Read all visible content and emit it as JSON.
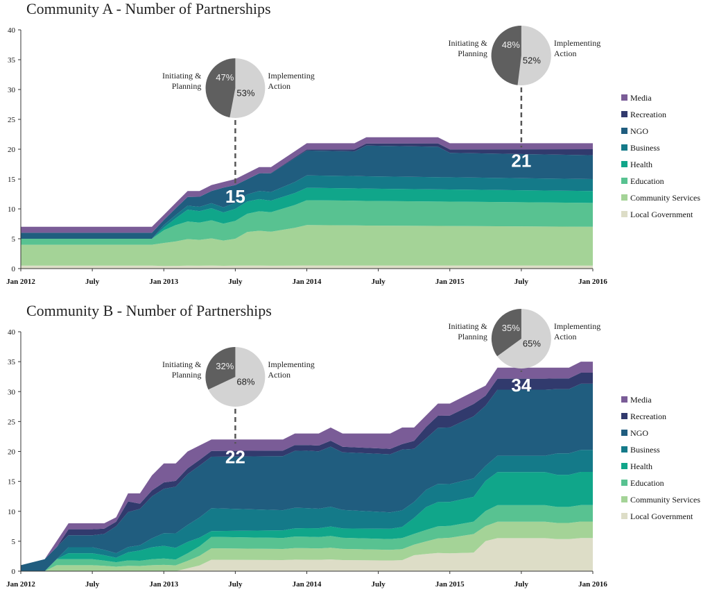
{
  "chart_data": [
    {
      "type": "area",
      "title": "Community A - Number of Partnerships",
      "ylim": [
        0,
        40
      ],
      "yticks": [
        "0",
        "5",
        "10",
        "15",
        "20",
        "25",
        "30",
        "35",
        "40"
      ],
      "xticks": [
        "Jan 2012",
        "July",
        "Jan 2013",
        "July",
        "Jan 2014",
        "July",
        "Jan 2015",
        "July",
        "Jan 2016"
      ],
      "legend": "right",
      "grid": false,
      "x_unit": "month index from Jan 2012",
      "x_range": [
        0,
        48
      ],
      "series": [
        {
          "name": "Local Government",
          "color": "#ddddc7",
          "points": [
            [
              0,
              0.5
            ],
            [
              48,
              0.5
            ]
          ]
        },
        {
          "name": "Community Services",
          "color": "#a4d397",
          "points": [
            [
              0,
              3.5
            ],
            [
              11,
              3.5
            ],
            [
              12,
              4.5
            ],
            [
              18,
              4.5
            ],
            [
              19,
              5.5
            ],
            [
              24,
              6.5
            ],
            [
              48,
              6.5
            ]
          ]
        },
        {
          "name": "Education",
          "color": "#58c291",
          "points": [
            [
              0,
              1
            ],
            [
              11,
              1
            ],
            [
              12,
              2.5
            ],
            [
              13,
              3
            ],
            [
              18,
              3
            ],
            [
              19,
              3
            ],
            [
              24,
              4
            ],
            [
              48,
              4
            ]
          ]
        },
        {
          "name": "Health",
          "color": "#10a68a",
          "points": [
            [
              0,
              0
            ],
            [
              11,
              0
            ],
            [
              12,
              0.5
            ],
            [
              14,
              2
            ],
            [
              18,
              2
            ],
            [
              24,
              2
            ],
            [
              48,
              2
            ]
          ]
        },
        {
          "name": "Business",
          "color": "#147a89",
          "points": [
            [
              0,
              0
            ],
            [
              11,
              0
            ],
            [
              12,
              0.5
            ],
            [
              18,
              1
            ],
            [
              24,
              2
            ],
            [
              48,
              2
            ]
          ]
        },
        {
          "name": "NGO",
          "color": "#205d7f",
          "points": [
            [
              0,
              1
            ],
            [
              11,
              1
            ],
            [
              12,
              1
            ],
            [
              14,
              1.5
            ],
            [
              16,
              2
            ],
            [
              17,
              3.5
            ],
            [
              18,
              3
            ],
            [
              19,
              2.5
            ],
            [
              23,
              4
            ],
            [
              24,
              4
            ],
            [
              28,
              4
            ],
            [
              29,
              5
            ],
            [
              35,
              5
            ],
            [
              36,
              4
            ],
            [
              48,
              4
            ]
          ]
        },
        {
          "name": "Recreation",
          "color": "#313a6d",
          "points": [
            [
              0,
              0
            ],
            [
              11,
              0
            ],
            [
              18,
              0
            ],
            [
              19,
              0
            ],
            [
              48,
              1
            ]
          ]
        },
        {
          "name": "Media",
          "color": "#7a5c97",
          "points": [
            [
              0,
              1
            ],
            [
              11,
              1
            ],
            [
              12,
              1
            ],
            [
              14,
              1
            ],
            [
              17,
              1
            ],
            [
              18,
              1
            ],
            [
              24,
              1
            ],
            [
              48,
              1
            ]
          ]
        }
      ],
      "totals": [
        [
          0,
          7
        ],
        [
          11,
          7
        ],
        [
          12,
          9
        ],
        [
          13,
          11
        ],
        [
          14,
          13
        ],
        [
          15,
          13
        ],
        [
          16,
          14
        ],
        [
          17,
          14.5
        ],
        [
          18,
          15
        ],
        [
          19,
          16
        ],
        [
          20,
          17
        ],
        [
          21,
          17
        ],
        [
          24,
          21
        ],
        [
          28,
          21
        ],
        [
          29,
          22
        ],
        [
          35,
          22
        ],
        [
          36,
          21
        ],
        [
          48,
          21
        ]
      ],
      "annotations": [
        {
          "label": "15",
          "at": 18
        },
        {
          "label": "21",
          "at": 42
        }
      ],
      "pies": [
        {
          "at": 18,
          "left_label": [
            "Initiating &",
            "Planning"
          ],
          "right_label": [
            "Implementing",
            "Action"
          ],
          "dark_pct": 47,
          "light_pct": 53,
          "dark_text": "47%",
          "light_text": "53%"
        },
        {
          "at": 42,
          "left_label": [
            "Initiating &",
            "Planning"
          ],
          "right_label": [
            "Implementing",
            "Action"
          ],
          "dark_pct": 48,
          "light_pct": 52,
          "dark_text": "48%",
          "light_text": "52%"
        }
      ]
    },
    {
      "type": "area",
      "title": "Community B - Number of Partnerships",
      "ylim": [
        0,
        40
      ],
      "yticks": [
        "0",
        "5",
        "10",
        "15",
        "20",
        "25",
        "30",
        "35",
        "40"
      ],
      "xticks": [
        "Jan 2012",
        "July",
        "Jan 2013",
        "July",
        "Jan 2014",
        "July",
        "Jan 2015",
        "July",
        "Jan 2016"
      ],
      "legend": "right",
      "grid": false,
      "x_unit": "month index from Jan 2012",
      "x_range": [
        0,
        48
      ],
      "series": [
        {
          "name": "Local Government",
          "color": "#ddddc7",
          "points": [
            [
              0,
              0
            ],
            [
              13,
              0
            ],
            [
              15,
              1
            ],
            [
              16,
              2
            ],
            [
              32,
              2
            ],
            [
              33,
              3
            ],
            [
              38,
              3
            ],
            [
              39,
              6
            ],
            [
              48,
              6
            ]
          ]
        },
        {
          "name": "Community Services",
          "color": "#a4d397",
          "points": [
            [
              0,
              0
            ],
            [
              2,
              0
            ],
            [
              3,
              1
            ],
            [
              13,
              1
            ],
            [
              16,
              2
            ],
            [
              32,
              2
            ],
            [
              33,
              2
            ],
            [
              38,
              3
            ],
            [
              39,
              3
            ],
            [
              48,
              3
            ]
          ]
        },
        {
          "name": "Education",
          "color": "#58c291",
          "points": [
            [
              0,
              0
            ],
            [
              2,
              0
            ],
            [
              3,
              1
            ],
            [
              4,
              1
            ],
            [
              8,
              1
            ],
            [
              13,
              1
            ],
            [
              16,
              2
            ],
            [
              32,
              2
            ],
            [
              34,
              2
            ],
            [
              38,
              2
            ],
            [
              39,
              3
            ],
            [
              48,
              3
            ]
          ]
        },
        {
          "name": "Health",
          "color": "#10a68a",
          "points": [
            [
              0,
              0
            ],
            [
              3,
              0
            ],
            [
              4,
              1
            ],
            [
              6,
              1
            ],
            [
              8,
              1
            ],
            [
              10,
              2
            ],
            [
              12,
              2
            ],
            [
              14,
              2
            ],
            [
              16,
              1
            ],
            [
              32,
              2
            ],
            [
              34,
              4
            ],
            [
              38,
              4
            ],
            [
              39,
              6
            ],
            [
              48,
              6
            ]
          ]
        },
        {
          "name": "Business",
          "color": "#147a89",
          "points": [
            [
              0,
              0
            ],
            [
              3,
              0
            ],
            [
              4,
              1
            ],
            [
              6,
              1
            ],
            [
              10,
              1
            ],
            [
              12,
              2
            ],
            [
              16,
              4
            ],
            [
              32,
              3
            ],
            [
              34,
              3
            ],
            [
              38,
              3
            ],
            [
              39,
              3
            ],
            [
              44,
              3
            ],
            [
              45,
              4
            ],
            [
              48,
              4
            ]
          ]
        },
        {
          "name": "NGO",
          "color": "#205d7f",
          "points": [
            [
              0,
              1
            ],
            [
              2,
              1
            ],
            [
              3,
              2
            ],
            [
              4,
              2
            ],
            [
              6,
              2
            ],
            [
              7,
              3
            ],
            [
              8,
              6
            ],
            [
              10,
              7
            ],
            [
              12,
              7
            ],
            [
              14,
              9
            ],
            [
              16,
              9
            ],
            [
              24,
              10
            ],
            [
              32,
              11
            ],
            [
              34,
              9
            ],
            [
              38,
              10
            ],
            [
              39,
              12
            ],
            [
              48,
              12
            ]
          ]
        },
        {
          "name": "Recreation",
          "color": "#313a6d",
          "points": [
            [
              0,
              0
            ],
            [
              2,
              0
            ],
            [
              3,
              0
            ],
            [
              4,
              1
            ],
            [
              8,
              1
            ],
            [
              9,
              2
            ],
            [
              10,
              1
            ],
            [
              12,
              1
            ],
            [
              14,
              1
            ],
            [
              16,
              1
            ],
            [
              24,
              1
            ],
            [
              32,
              1
            ],
            [
              34,
              2
            ],
            [
              38,
              2
            ],
            [
              39,
              2
            ],
            [
              48,
              2
            ]
          ]
        },
        {
          "name": "Media",
          "color": "#7a5c97",
          "points": [
            [
              0,
              0
            ],
            [
              2,
              0
            ],
            [
              3,
              1
            ],
            [
              4,
              1
            ],
            [
              8,
              1
            ],
            [
              10,
              2
            ],
            [
              12,
              3
            ],
            [
              14,
              3
            ],
            [
              16,
              2
            ],
            [
              24,
              2
            ],
            [
              32,
              3
            ],
            [
              34,
              2
            ],
            [
              38,
              2
            ],
            [
              39,
              2
            ],
            [
              48,
              2
            ]
          ]
        }
      ],
      "totals": [
        [
          0,
          1
        ],
        [
          2,
          2
        ],
        [
          3,
          5
        ],
        [
          4,
          8
        ],
        [
          7,
          8
        ],
        [
          8,
          9
        ],
        [
          9,
          13
        ],
        [
          10,
          13
        ],
        [
          11,
          16
        ],
        [
          12,
          18
        ],
        [
          13,
          18
        ],
        [
          14,
          20
        ],
        [
          16,
          22
        ],
        [
          22,
          22
        ],
        [
          23,
          23
        ],
        [
          25,
          23
        ],
        [
          26,
          24
        ],
        [
          27,
          23
        ],
        [
          31,
          23
        ],
        [
          32,
          24
        ],
        [
          33,
          24
        ],
        [
          35,
          28
        ],
        [
          36,
          28
        ],
        [
          38,
          30
        ],
        [
          39,
          31
        ],
        [
          40,
          34
        ],
        [
          46,
          34
        ],
        [
          47,
          35
        ],
        [
          48,
          35
        ]
      ],
      "annotations": [
        {
          "label": "22",
          "at": 18
        },
        {
          "label": "34",
          "at": 42
        }
      ],
      "pies": [
        {
          "at": 18,
          "left_label": [
            "Initiating &",
            "Planning"
          ],
          "right_label": [
            "Implementing",
            "Action"
          ],
          "dark_pct": 32,
          "light_pct": 68,
          "dark_text": "32%",
          "light_text": "68%"
        },
        {
          "at": 42,
          "left_label": [
            "Initiating &",
            "Planning"
          ],
          "right_label": [
            "Implementing",
            "Action"
          ],
          "dark_pct": 35,
          "light_pct": 65,
          "dark_text": "35%",
          "light_text": "65%"
        }
      ]
    }
  ]
}
